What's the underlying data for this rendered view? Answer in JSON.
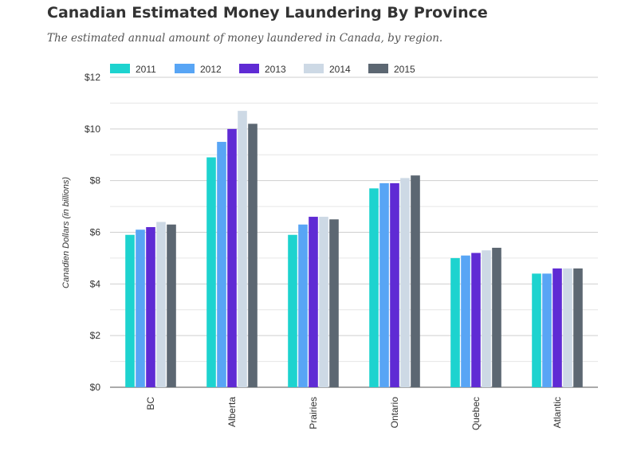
{
  "title": "Canadian Estimated Money Laundering By Province",
  "subtitle": "The estimated annual amount of money laundered in Canada, by region.",
  "chart_data": {
    "type": "bar",
    "ylabel": "Canadien Dollars (in billions)",
    "xlabel": "",
    "ylim": [
      0,
      12
    ],
    "yticks": [
      0,
      2,
      4,
      6,
      8,
      10,
      12
    ],
    "ytick_labels": [
      "$0",
      "$2",
      "$4",
      "$6",
      "$8",
      "$10",
      "$12"
    ],
    "grid": true,
    "legend_position": "top-left",
    "categories": [
      "BC",
      "Alberta",
      "Prairies",
      "Ontario",
      "Quebec",
      "Atlantic"
    ],
    "series": [
      {
        "name": "2011",
        "color": "#1dd3cf",
        "values": [
          5.9,
          8.9,
          5.9,
          7.7,
          5.0,
          4.4
        ]
      },
      {
        "name": "2012",
        "color": "#58a5f5",
        "values": [
          6.1,
          9.5,
          6.3,
          7.9,
          5.1,
          4.4
        ]
      },
      {
        "name": "2013",
        "color": "#5f2bd4",
        "values": [
          6.2,
          10.0,
          6.6,
          7.9,
          5.2,
          4.6
        ]
      },
      {
        "name": "2014",
        "color": "#cdd9e5",
        "values": [
          6.4,
          10.7,
          6.6,
          8.1,
          5.3,
          4.6
        ]
      },
      {
        "name": "2015",
        "color": "#5c6772",
        "values": [
          6.3,
          10.2,
          6.5,
          8.2,
          5.4,
          4.6
        ]
      }
    ]
  }
}
